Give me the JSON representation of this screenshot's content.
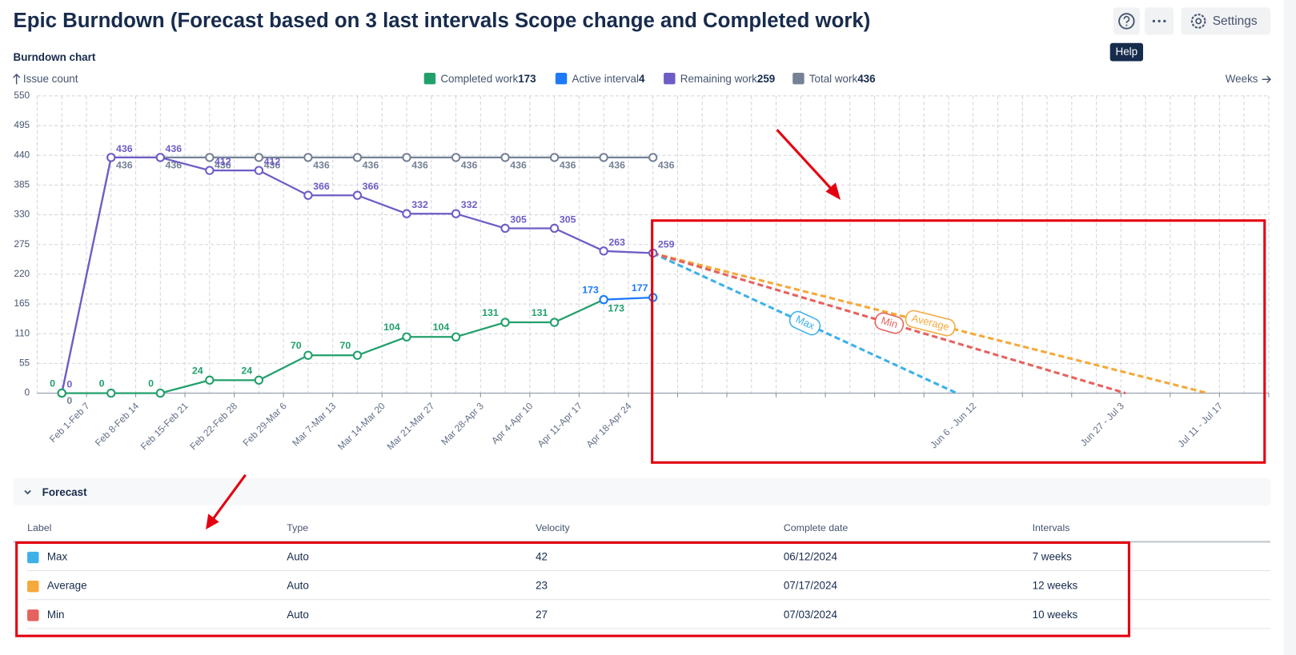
{
  "header": {
    "title": "Epic Burndown (Forecast based on 3 last intervals Scope change and Completed work)",
    "help_tooltip": "Help",
    "settings_button": "Settings"
  },
  "chart_data": {
    "type": "line",
    "title": "Burndown chart",
    "y_axis_label": "Issue count",
    "x_axis_label": "Weeks",
    "categories": [
      "Feb 1-Feb 7",
      "Feb 8-Feb 14",
      "Feb 15-Feb 21",
      "Feb 22-Feb 28",
      "Feb 29-Mar 6",
      "Mar 7-Mar 13",
      "Mar 14-Mar 20",
      "Mar 21-Mar 27",
      "Mar 28-Apr 3",
      "Apr 4-Apr 10",
      "Apr 11-Apr 17",
      "Apr 18-Apr 24",
      null,
      null,
      null,
      null,
      null,
      null,
      "Jun 6 - Jun 12",
      null,
      null,
      "Jun 27 - Jul 3",
      null,
      "Jul 11 - Jul 17",
      null
    ],
    "ylim": [
      0,
      550
    ],
    "yticks": [
      0,
      55,
      110,
      165,
      220,
      275,
      330,
      385,
      440,
      495,
      550
    ],
    "grid": true,
    "series": [
      {
        "name": "Completed work",
        "total": 173,
        "color": "#22a06b",
        "values": [
          0,
          0,
          0,
          24,
          24,
          70,
          70,
          104,
          104,
          131,
          131,
          173,
          null,
          null,
          null,
          null,
          null,
          null,
          null,
          null,
          null,
          null,
          null,
          null,
          null
        ]
      },
      {
        "name": "Active interval",
        "total": 4,
        "color": "#1d7afc",
        "values": [
          null,
          null,
          null,
          null,
          null,
          null,
          null,
          null,
          null,
          null,
          null,
          173,
          177,
          null,
          null,
          null,
          null,
          null,
          null,
          null,
          null,
          null,
          null,
          null,
          null
        ]
      },
      {
        "name": "Remaining work",
        "total": 259,
        "color": "#6e5dc6",
        "values": [
          0,
          436,
          436,
          412,
          412,
          366,
          366,
          332,
          332,
          305,
          305,
          263,
          259,
          null,
          null,
          null,
          null,
          null,
          null,
          null,
          null,
          null,
          null,
          null,
          null
        ]
      },
      {
        "name": "Total work",
        "total": 436,
        "color": "#758195",
        "values": [
          0,
          436,
          436,
          436,
          436,
          436,
          436,
          436,
          436,
          436,
          436,
          436,
          436,
          null,
          null,
          null,
          null,
          null,
          null,
          null,
          null,
          null,
          null,
          null,
          null
        ]
      }
    ]
  },
  "forecast": {
    "title": "Forecast",
    "columns": [
      "Label",
      "Type",
      "Velocity",
      "Complete date",
      "Intervals"
    ],
    "rows": [
      {
        "label": "Max",
        "color": "#3eb0e8",
        "type": "Auto",
        "velocity": 42,
        "complete_date": "06/12/2024",
        "intervals": "7 weeks"
      },
      {
        "label": "Average",
        "color": "#f5a93a",
        "type": "Auto",
        "velocity": 23,
        "complete_date": "07/17/2024",
        "intervals": "12 weeks"
      },
      {
        "label": "Min",
        "color": "#e5625e",
        "type": "Auto",
        "velocity": 27,
        "complete_date": "07/03/2024",
        "intervals": "10 weeks"
      }
    ]
  }
}
